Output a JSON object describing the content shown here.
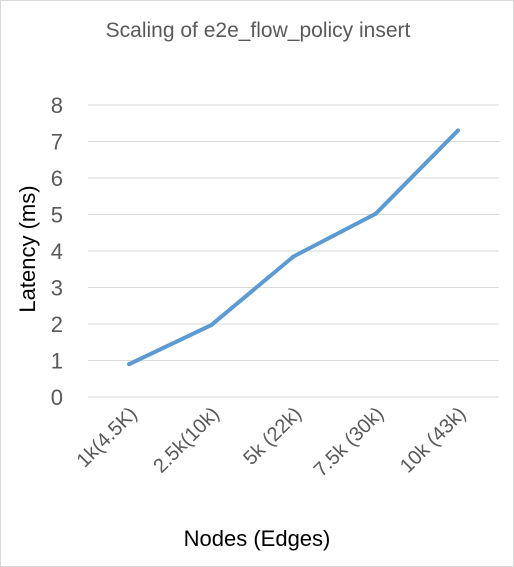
{
  "chart_data": {
    "type": "line",
    "title": "Scaling of e2e_flow_policy insert",
    "xlabel": "Nodes (Edges)",
    "ylabel": "Latency (ms)",
    "categories": [
      "1k(4.5K)",
      "2.5k(10k)",
      "5k (22k)",
      "7.5k (30k)",
      "10k (43k)"
    ],
    "series": [
      {
        "values": [
          0.9,
          1.97,
          3.85,
          5.02,
          7.3
        ]
      }
    ],
    "ylim": [
      0,
      8
    ],
    "yticks": [
      "0",
      "1",
      "2",
      "3",
      "4",
      "5",
      "6",
      "7",
      "8"
    ],
    "grid": true,
    "legend": "none",
    "colors": {
      "series": "#5b9bd5",
      "grid": "#d9d9d9"
    }
  }
}
